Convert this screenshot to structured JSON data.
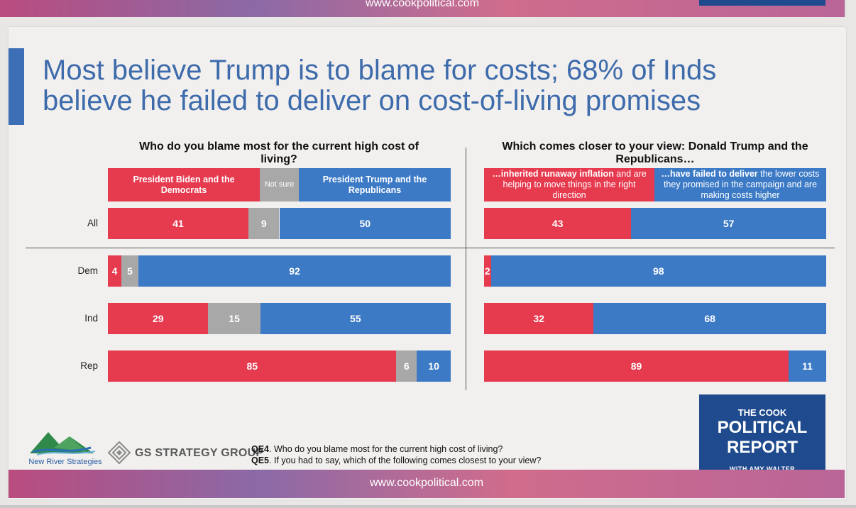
{
  "website": "www.cookpolitical.com",
  "title": "Most believe Trump is to blame for costs; 68% of Inds believe he failed to deliver on cost-of-living promises",
  "colors": {
    "red": "#e63a4f",
    "gray": "#a8a8a8",
    "blue": "#3c7ac6",
    "title": "#3d6bab",
    "accent": "#3d6fb6"
  },
  "chart_data": [
    {
      "type": "bar",
      "orientation": "horizontal",
      "stacked": true,
      "title": "Who do you blame most for the current high cost of living?",
      "categories": [
        "All",
        "Dem",
        "Ind",
        "Rep"
      ],
      "series": [
        {
          "name": "President Biden and the Democrats",
          "color": "red",
          "values": [
            41,
            4,
            29,
            85
          ]
        },
        {
          "name": "Not sure",
          "color": "gray",
          "values": [
            9,
            5,
            15,
            6
          ]
        },
        {
          "name": "President Trump and the Republicans",
          "color": "blue",
          "values": [
            50,
            92,
            55,
            10
          ]
        }
      ]
    },
    {
      "type": "bar",
      "orientation": "horizontal",
      "stacked": true,
      "title": "Which comes closer to your view: Donald Trump and the Republicans…",
      "categories": [
        "All",
        "Dem",
        "Ind",
        "Rep"
      ],
      "series": [
        {
          "name": "…inherited runaway inflation and are helping to move things in the right direction",
          "bold": "…inherited runaway inflation",
          "rest": " and are helping to move things in the right direction",
          "color": "red",
          "values": [
            43,
            2,
            32,
            89
          ]
        },
        {
          "name": "…have failed to deliver the lower costs they promised in the campaign and are making costs higher",
          "bold": "…have failed to deliver",
          "rest": " the lower costs they promised in the campaign and are making costs higher",
          "color": "blue",
          "values": [
            57,
            98,
            68,
            11
          ]
        }
      ]
    }
  ],
  "footnotes": {
    "qe4_label": "QE4",
    "qe4_text": ". Who do you blame most for the current high cost of living?",
    "qe5_label": "QE5",
    "qe5_text": ". If you had to say, which of the following comes closest to your view?"
  },
  "logos": {
    "new_river": "New River Strategies",
    "gs": "GS STRATEGY GROUP",
    "cook_line1": "THE COOK",
    "cook_line2": "POLITICAL",
    "cook_line3": "REPORT",
    "cook_line4": "WITH AMY WALTER"
  }
}
